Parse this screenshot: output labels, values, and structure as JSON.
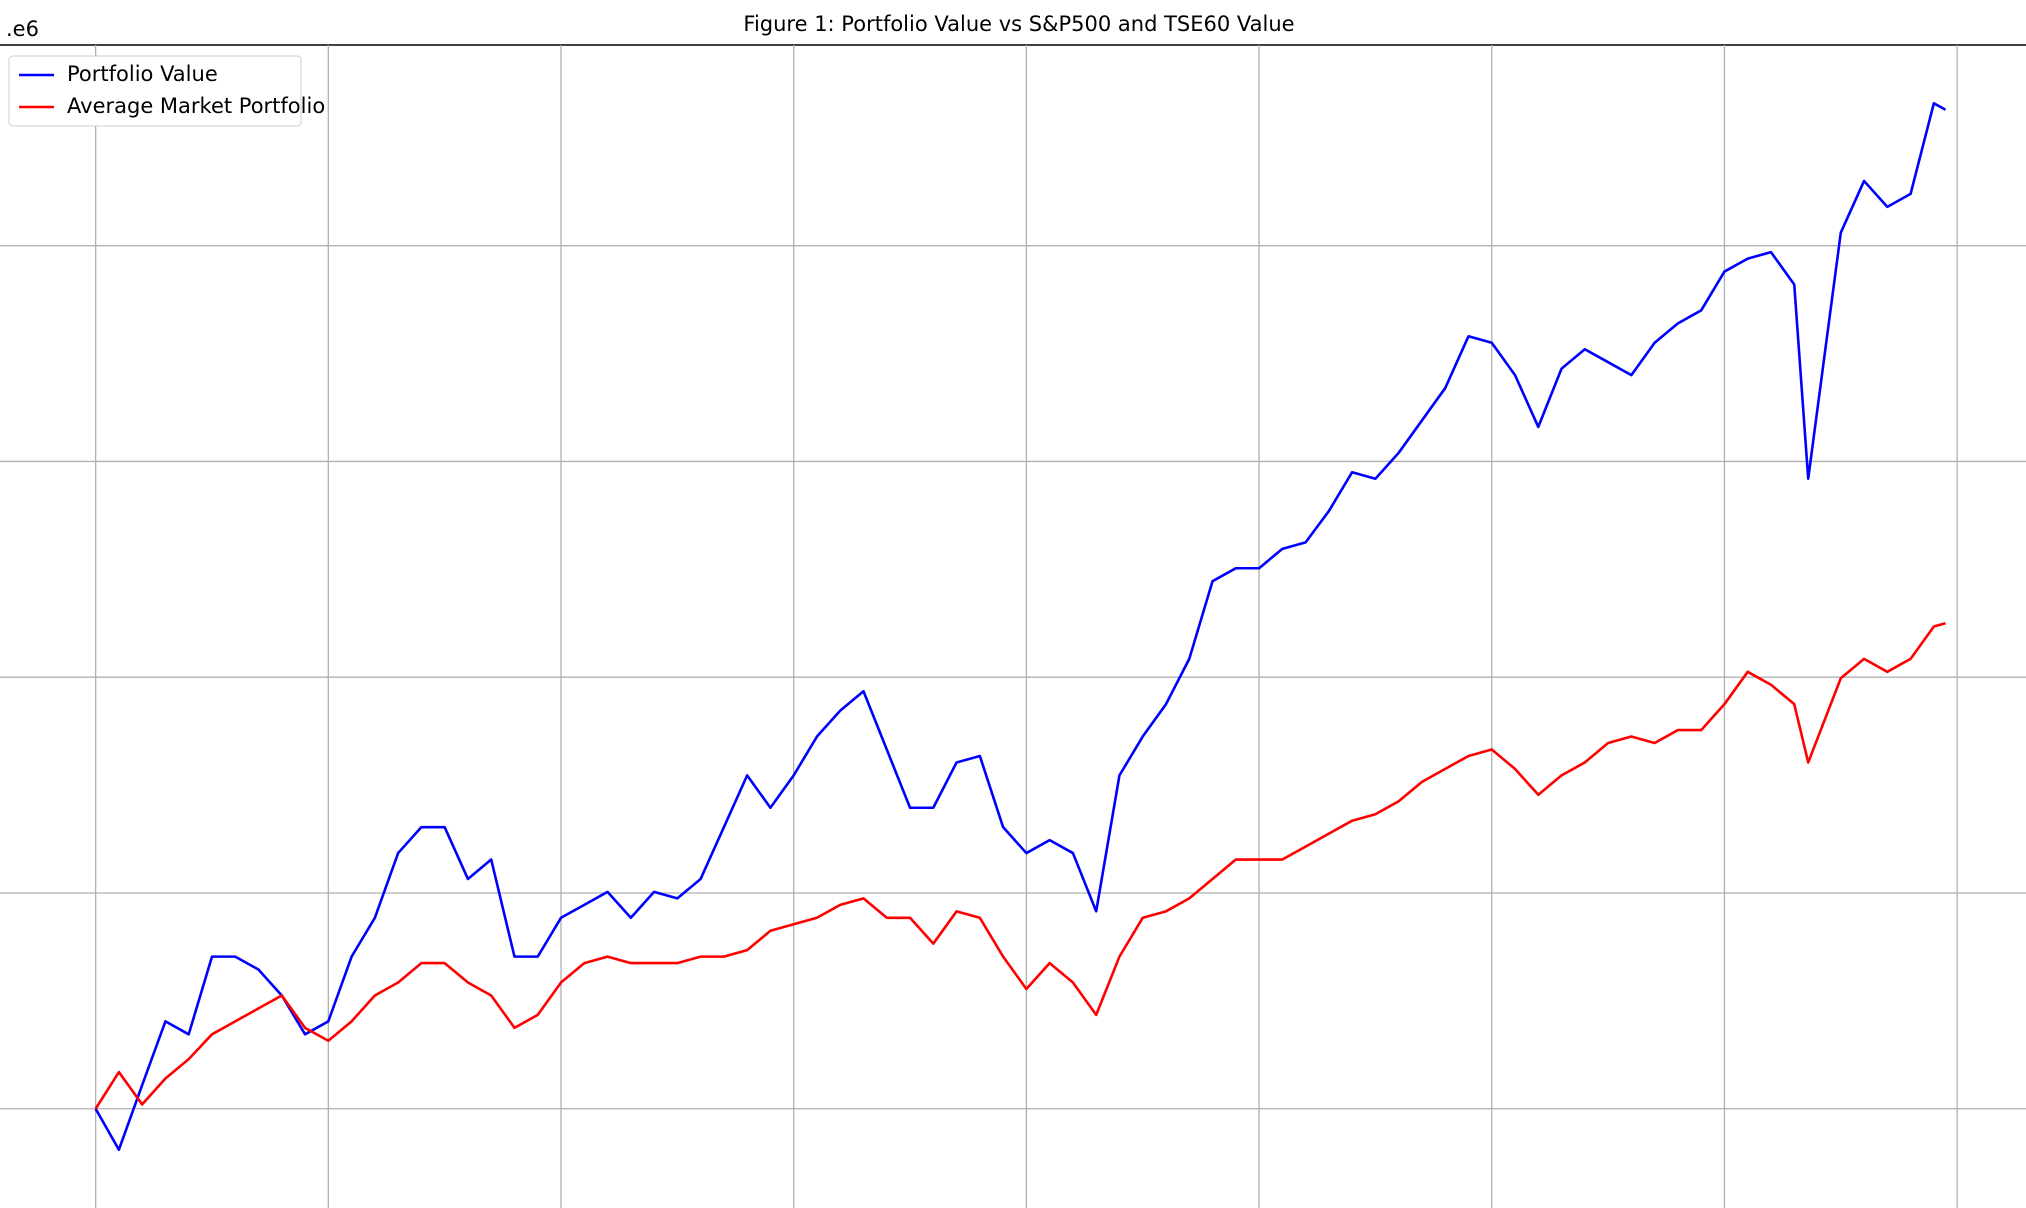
{
  "chart_data": {
    "type": "line",
    "title": "Figure 1: Portfolio Value vs S&P500 and TSE60 Value",
    "y_offset_label": ".e6",
    "x": [
      0,
      0.1,
      0.2,
      0.3,
      0.4,
      0.5,
      0.6,
      0.7,
      0.8,
      0.9,
      1.0,
      1.1,
      1.2,
      1.3,
      1.4,
      1.5,
      1.6,
      1.7,
      1.8,
      1.9,
      2.0,
      2.1,
      2.2,
      2.3,
      2.4,
      2.5,
      2.6,
      2.7,
      2.8,
      2.9,
      3.0,
      3.1,
      3.2,
      3.3,
      3.4,
      3.5,
      3.6,
      3.7,
      3.8,
      3.9,
      4.0,
      4.1,
      4.2,
      4.3,
      4.4,
      4.5,
      4.6,
      4.7,
      4.8,
      4.9,
      5.0,
      5.1,
      5.2,
      5.3,
      5.4,
      5.5,
      5.6,
      5.7,
      5.8,
      5.9,
      6.0,
      6.1,
      6.2,
      6.3,
      6.4,
      6.5,
      6.6,
      6.7,
      6.8,
      6.9,
      7.0,
      7.1,
      7.2,
      7.3,
      7.36,
      7.5,
      7.6,
      7.7,
      7.8,
      7.9,
      7.95
    ],
    "series": [
      {
        "name": "Portfolio Value",
        "color": "#0000ff",
        "values": [
          1.0,
          0.962,
          1.022,
          1.081,
          1.069,
          1.141,
          1.141,
          1.129,
          1.105,
          1.069,
          1.081,
          1.141,
          1.177,
          1.237,
          1.261,
          1.261,
          1.213,
          1.231,
          1.141,
          1.141,
          1.177,
          1.189,
          1.201,
          1.177,
          1.201,
          1.195,
          1.213,
          1.261,
          1.309,
          1.279,
          1.309,
          1.345,
          1.369,
          1.387,
          1.333,
          1.279,
          1.279,
          1.321,
          1.327,
          1.261,
          1.237,
          1.249,
          1.237,
          1.183,
          1.309,
          1.345,
          1.375,
          1.417,
          1.489,
          1.501,
          1.501,
          1.519,
          1.525,
          1.554,
          1.59,
          1.584,
          1.608,
          1.638,
          1.668,
          1.716,
          1.71,
          1.68,
          1.632,
          1.686,
          1.704,
          1.692,
          1.68,
          1.71,
          1.728,
          1.74,
          1.776,
          1.788,
          1.794,
          1.764,
          1.584,
          1.812,
          1.86,
          1.836,
          1.848,
          1.932,
          1.926
        ]
      },
      {
        "name": "Average Market Portfolio",
        "color": "#ff0000",
        "values": [
          1.0,
          1.034,
          1.004,
          1.028,
          1.046,
          1.069,
          1.081,
          1.093,
          1.105,
          1.075,
          1.063,
          1.081,
          1.105,
          1.117,
          1.135,
          1.135,
          1.117,
          1.105,
          1.075,
          1.087,
          1.117,
          1.135,
          1.141,
          1.135,
          1.135,
          1.135,
          1.141,
          1.141,
          1.147,
          1.165,
          1.171,
          1.177,
          1.189,
          1.195,
          1.177,
          1.177,
          1.153,
          1.183,
          1.177,
          1.141,
          1.111,
          1.135,
          1.117,
          1.087,
          1.141,
          1.177,
          1.183,
          1.195,
          1.213,
          1.231,
          1.231,
          1.231,
          1.243,
          1.255,
          1.267,
          1.273,
          1.285,
          1.303,
          1.315,
          1.327,
          1.333,
          1.315,
          1.291,
          1.309,
          1.321,
          1.339,
          1.345,
          1.339,
          1.351,
          1.351,
          1.375,
          1.405,
          1.393,
          1.375,
          1.321,
          1.399,
          1.417,
          1.405,
          1.417,
          1.447,
          1.45
        ]
      }
    ],
    "xlim": [
      -0.411,
      8.296
    ],
    "xticks": [
      0,
      1,
      2,
      3,
      4,
      5,
      6,
      7,
      8
    ],
    "ylim": [
      0.908,
      1.986
    ],
    "yticks": [
      1.0,
      1.2,
      1.4,
      1.6,
      1.8
    ],
    "grid": true,
    "legend": "upper left"
  }
}
